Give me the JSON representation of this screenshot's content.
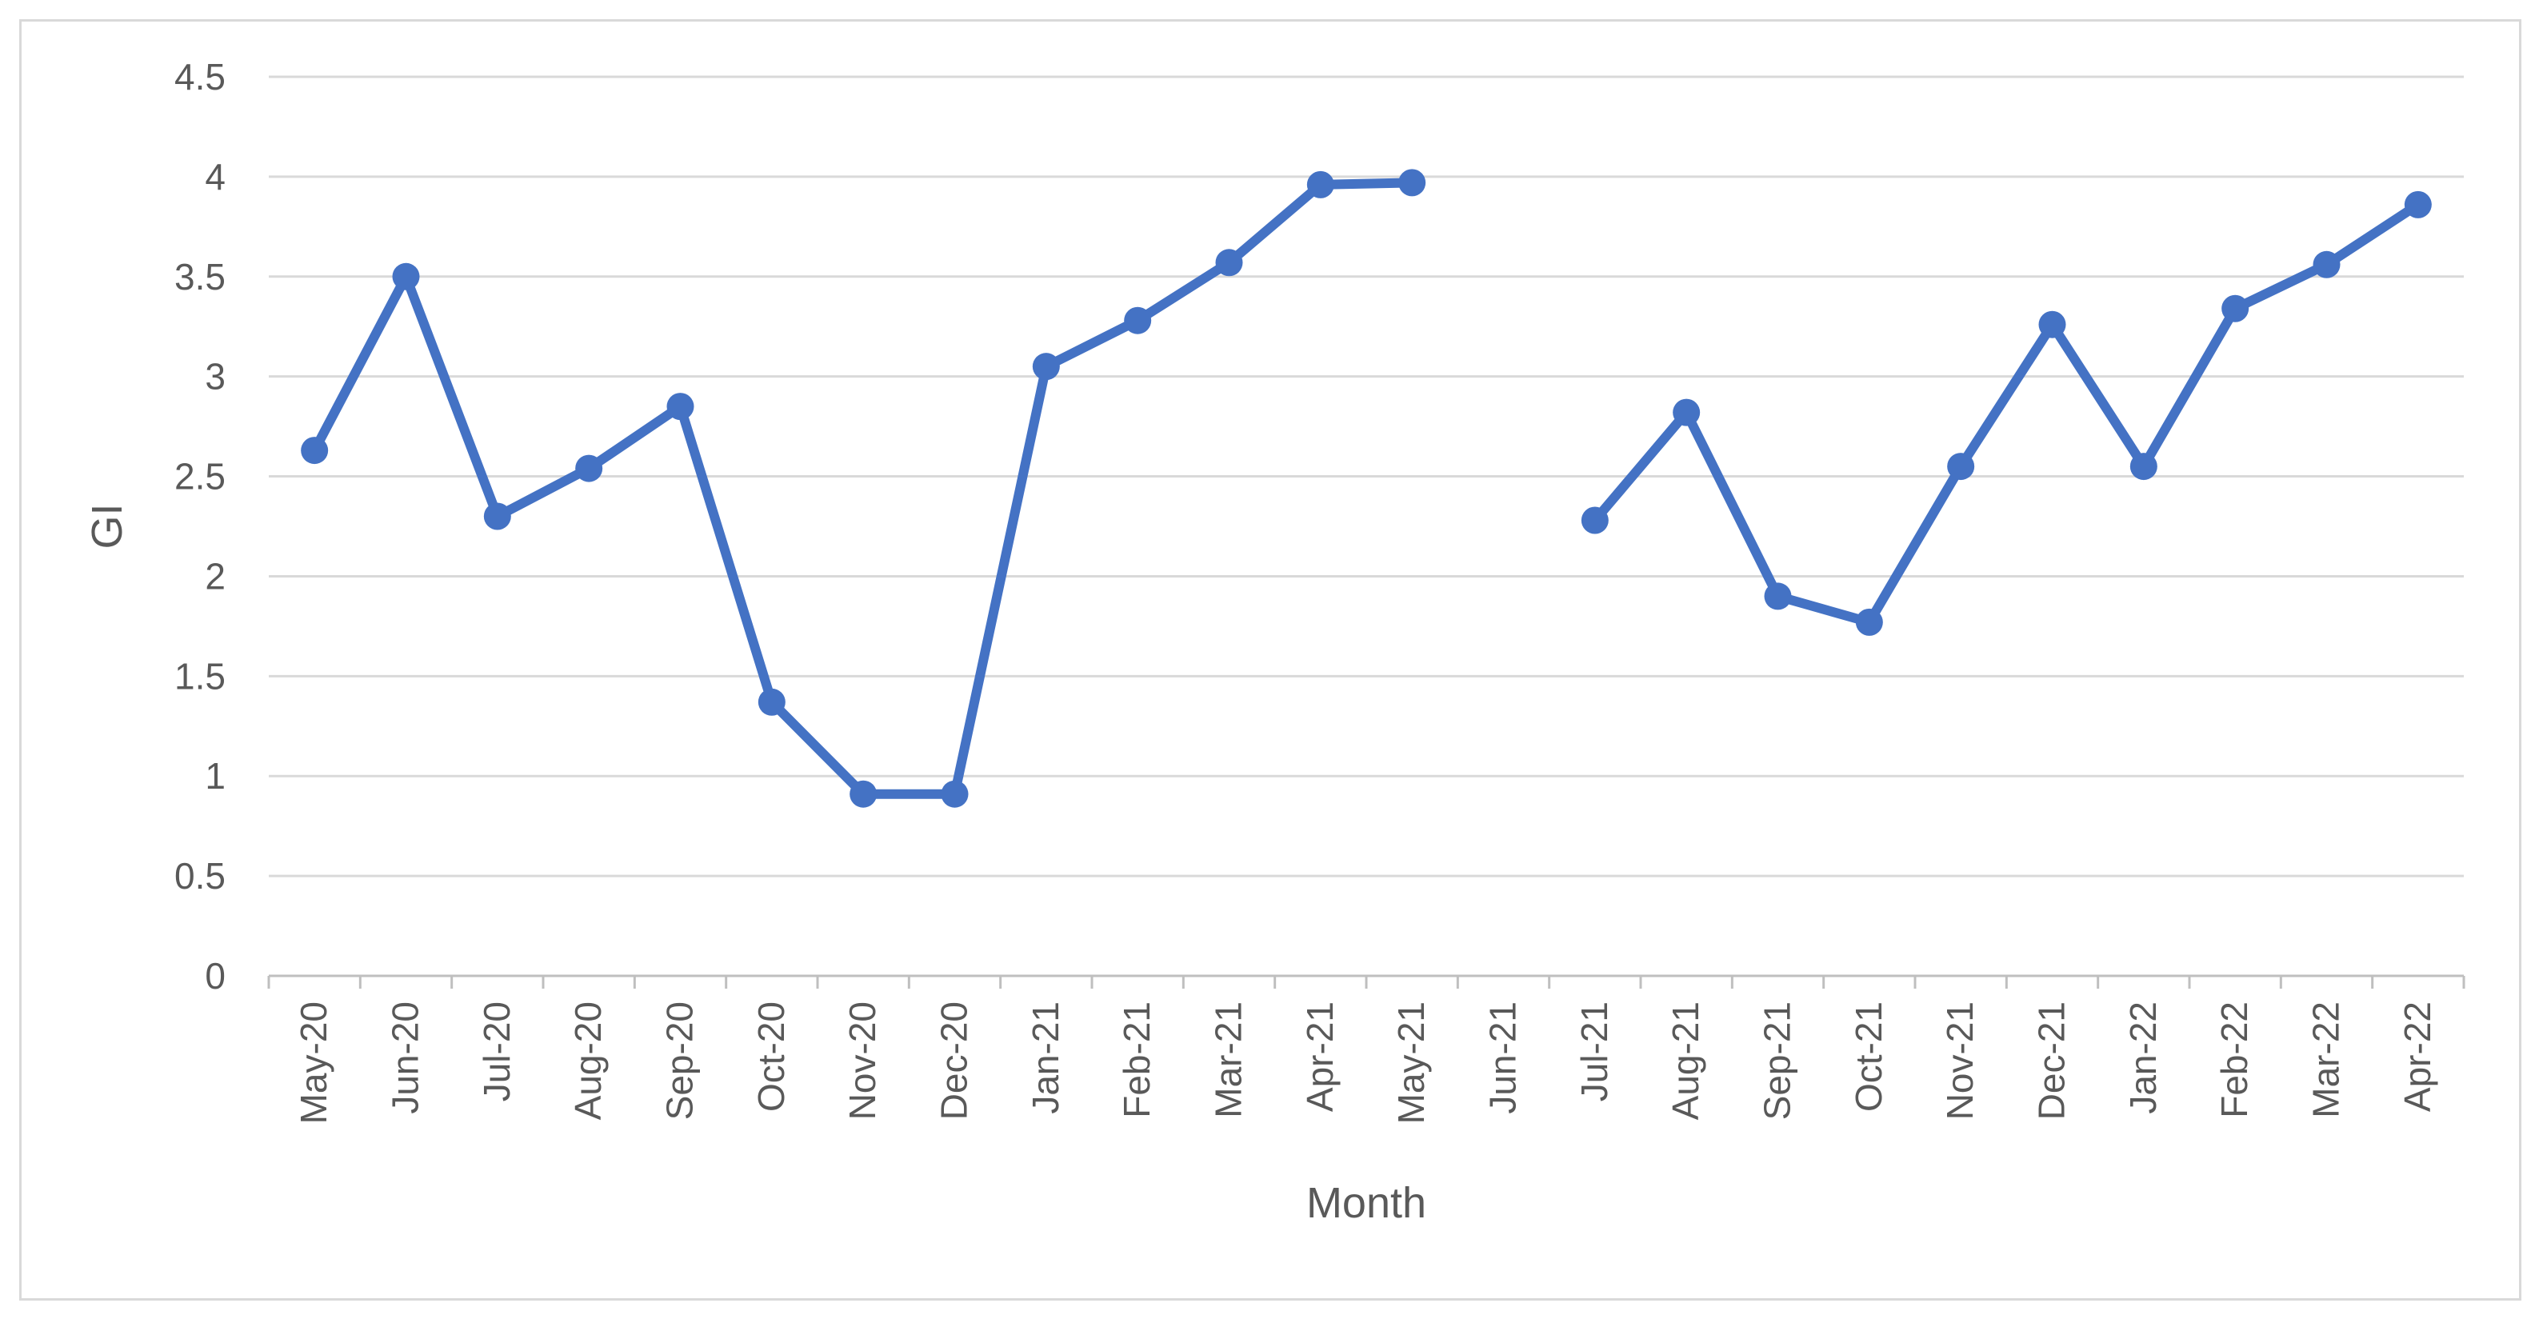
{
  "chart_data": {
    "type": "line",
    "title": "",
    "xlabel": "Month",
    "ylabel": "GI",
    "ylim": [
      0,
      4.5
    ],
    "yticks": [
      "0",
      "0.5",
      "1",
      "1.5",
      "2",
      "2.5",
      "3",
      "3.5",
      "4",
      "4.5"
    ],
    "grid": true,
    "legend": "none",
    "line_color": "#4472C4",
    "categories": [
      "May-20",
      "Jun-20",
      "Jul-20",
      "Aug-20",
      "Sep-20",
      "Oct-20",
      "Nov-20",
      "Dec-20",
      "Jan-21",
      "Feb-21",
      "Mar-21",
      "Apr-21",
      "May-21",
      "Jun-21",
      "Jul-21",
      "Aug-21",
      "Sep-21",
      "Oct-21",
      "Nov-21",
      "Dec-21",
      "Jan-22",
      "Feb-22",
      "Mar-22",
      "Apr-22"
    ],
    "series": [
      {
        "values": [
          2.63,
          3.5,
          2.3,
          2.54,
          2.85,
          1.37,
          0.91,
          0.91,
          3.05,
          3.28,
          3.57,
          3.96,
          3.97,
          null,
          2.28,
          2.82,
          1.9,
          1.77,
          2.55,
          3.26,
          2.55,
          3.34,
          3.56,
          3.86
        ]
      }
    ]
  }
}
